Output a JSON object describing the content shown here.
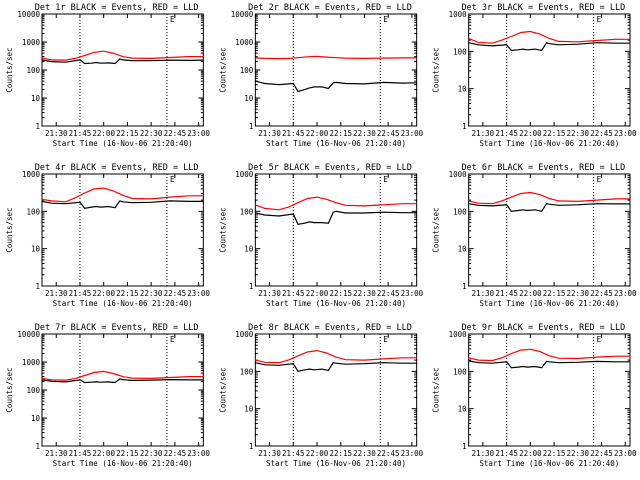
{
  "figure_title": "",
  "colors": {
    "events": "#000000",
    "lld": "#ff0000",
    "axis": "#000000",
    "background": "#ffffff"
  },
  "chart_data": [
    {
      "type": "line",
      "title": "Det 1r BLACK = Events, RED = LLD",
      "ylabel": "Counts/sec",
      "xlabel": "Start Time (16-Nov-06 21:20:40)",
      "yscale": "log",
      "ylim": [
        1,
        10000
      ],
      "xlim": [
        21.35,
        23.05
      ],
      "x_ticks": [
        "21:30",
        "21:45",
        "22:00",
        "22:15",
        "22:30",
        "22:45",
        "23:00"
      ],
      "y_ticks": [
        "1",
        "10",
        "100",
        "1000",
        "10000"
      ],
      "marker_lines": [
        "21:45",
        "22:40"
      ],
      "corner_label": "E",
      "series": [
        {
          "name": "Events",
          "color": "#000000",
          "x": [
            21.35,
            21.45,
            21.6,
            21.75,
            21.8,
            21.87,
            21.92,
            21.97,
            22.05,
            22.12,
            22.17,
            22.2,
            22.3,
            22.5,
            22.7,
            22.9,
            23.05
          ],
          "y": [
            230,
            200,
            190,
            230,
            170,
            175,
            185,
            175,
            180,
            170,
            250,
            230,
            215,
            215,
            225,
            220,
            225
          ]
        },
        {
          "name": "LLD",
          "color": "#ff0000",
          "x": [
            21.35,
            21.45,
            21.6,
            21.7,
            21.8,
            21.9,
            22.0,
            22.1,
            22.2,
            22.3,
            22.5,
            22.7,
            22.9,
            23.05
          ],
          "y": [
            270,
            230,
            225,
            260,
            330,
            430,
            470,
            400,
            300,
            265,
            260,
            280,
            300,
            300
          ]
        }
      ]
    },
    {
      "type": "line",
      "title": "Det 2r BLACK = Events, RED = LLD",
      "ylabel": "Counts/sec",
      "xlabel": "Start Time (16-Nov-06 21:20:40)",
      "yscale": "log",
      "ylim": [
        1,
        10000
      ],
      "xlim": [
        21.35,
        23.05
      ],
      "x_ticks": [
        "21:30",
        "21:45",
        "22:00",
        "22:15",
        "22:30",
        "22:45",
        "23:00"
      ],
      "y_ticks": [
        "1",
        "10",
        "100",
        "1000",
        "10000"
      ],
      "marker_lines": [
        "21:45",
        "22:40"
      ],
      "corner_label": "E",
      "series": [
        {
          "name": "Events",
          "color": "#000000",
          "x": [
            21.35,
            21.45,
            21.6,
            21.75,
            21.8,
            21.87,
            21.92,
            21.97,
            22.05,
            22.12,
            22.17,
            22.2,
            22.3,
            22.5,
            22.7,
            22.9,
            23.05
          ],
          "y": [
            40,
            33,
            30,
            33,
            17,
            20,
            23,
            25,
            25,
            22,
            35,
            36,
            33,
            32,
            36,
            34,
            35
          ]
        },
        {
          "name": "LLD",
          "color": "#ff0000",
          "x": [
            21.35,
            21.45,
            21.6,
            21.7,
            21.8,
            21.9,
            22.0,
            22.1,
            22.2,
            22.3,
            22.5,
            22.7,
            22.9,
            23.05
          ],
          "y": [
            270,
            260,
            255,
            260,
            275,
            295,
            305,
            290,
            275,
            265,
            260,
            265,
            270,
            270
          ]
        }
      ]
    },
    {
      "type": "line",
      "title": "Det 3r BLACK = Events, RED = LLD",
      "ylabel": "Counts/sec",
      "xlabel": "Start Time (16-Nov-06 21:20:40)",
      "yscale": "log",
      "ylim": [
        1,
        1000
      ],
      "xlim": [
        21.35,
        23.05
      ],
      "x_ticks": [
        "21:30",
        "21:45",
        "22:00",
        "22:15",
        "22:30",
        "22:45",
        "23:00"
      ],
      "y_ticks": [
        "1",
        "10",
        "100",
        "1000"
      ],
      "marker_lines": [
        "21:45",
        "22:40"
      ],
      "corner_label": "E",
      "series": [
        {
          "name": "Events",
          "color": "#000000",
          "x": [
            21.35,
            21.45,
            21.6,
            21.75,
            21.8,
            21.87,
            21.92,
            21.97,
            22.05,
            22.12,
            22.17,
            22.2,
            22.3,
            22.5,
            22.7,
            22.9,
            23.05
          ],
          "y": [
            170,
            150,
            140,
            150,
            105,
            110,
            115,
            110,
            115,
            105,
            170,
            160,
            150,
            155,
            170,
            165,
            165
          ]
        },
        {
          "name": "LLD",
          "color": "#ff0000",
          "x": [
            21.35,
            21.45,
            21.6,
            21.7,
            21.8,
            21.9,
            22.0,
            22.1,
            22.2,
            22.3,
            22.5,
            22.7,
            22.9,
            23.05
          ],
          "y": [
            220,
            175,
            165,
            200,
            250,
            320,
            340,
            290,
            220,
            185,
            180,
            195,
            210,
            210
          ]
        }
      ]
    },
    {
      "type": "line",
      "title": "Det 4r BLACK = Events, RED = LLD",
      "ylabel": "Counts/sec",
      "xlabel": "Start Time (16-Nov-06 21:20:40)",
      "yscale": "log",
      "ylim": [
        1,
        1000
      ],
      "xlim": [
        21.35,
        23.05
      ],
      "x_ticks": [
        "21:30",
        "21:45",
        "22:00",
        "22:15",
        "22:30",
        "22:45",
        "23:00"
      ],
      "y_ticks": [
        "1",
        "10",
        "100",
        "1000"
      ],
      "marker_lines": [
        "21:45",
        "22:40"
      ],
      "corner_label": "E",
      "series": [
        {
          "name": "Events",
          "color": "#000000",
          "x": [
            21.35,
            21.45,
            21.6,
            21.75,
            21.8,
            21.87,
            21.92,
            21.97,
            22.05,
            22.12,
            22.17,
            22.2,
            22.3,
            22.5,
            22.7,
            22.9,
            23.05
          ],
          "y": [
            185,
            165,
            160,
            175,
            120,
            130,
            135,
            130,
            135,
            125,
            190,
            180,
            170,
            175,
            190,
            185,
            185
          ]
        },
        {
          "name": "LLD",
          "color": "#ff0000",
          "x": [
            21.35,
            21.45,
            21.6,
            21.7,
            21.8,
            21.9,
            22.0,
            22.1,
            22.2,
            22.3,
            22.5,
            22.7,
            22.9,
            23.05
          ],
          "y": [
            210,
            190,
            180,
            230,
            310,
            400,
            420,
            350,
            270,
            220,
            215,
            240,
            260,
            260
          ]
        }
      ]
    },
    {
      "type": "line",
      "title": "Det 5r BLACK = Events, RED = LLD",
      "ylabel": "Counts/sec",
      "xlabel": "Start Time (16-Nov-06 21:20:40)",
      "yscale": "log",
      "ylim": [
        1,
        1000
      ],
      "xlim": [
        21.35,
        23.05
      ],
      "x_ticks": [
        "21:30",
        "21:45",
        "22:00",
        "22:15",
        "22:30",
        "22:45",
        "23:00"
      ],
      "y_ticks": [
        "1",
        "10",
        "100",
        "1000"
      ],
      "marker_lines": [
        "21:45",
        "22:40"
      ],
      "corner_label": "E",
      "series": [
        {
          "name": "Events",
          "color": "#000000",
          "x": [
            21.35,
            21.45,
            21.6,
            21.75,
            21.8,
            21.87,
            21.92,
            21.97,
            22.05,
            22.12,
            22.17,
            22.2,
            22.3,
            22.5,
            22.7,
            22.9,
            23.05
          ],
          "y": [
            90,
            80,
            75,
            85,
            45,
            48,
            52,
            50,
            50,
            48,
            95,
            100,
            90,
            90,
            95,
            92,
            92
          ]
        },
        {
          "name": "LLD",
          "color": "#ff0000",
          "x": [
            21.35,
            21.45,
            21.6,
            21.7,
            21.8,
            21.9,
            22.0,
            22.1,
            22.2,
            22.3,
            22.5,
            22.7,
            22.9,
            23.05
          ],
          "y": [
            150,
            120,
            110,
            130,
            170,
            220,
            240,
            210,
            170,
            145,
            140,
            150,
            160,
            160
          ]
        }
      ]
    },
    {
      "type": "line",
      "title": "Det 6r BLACK = Events, RED = LLD",
      "ylabel": "Counts/sec",
      "xlabel": "Start Time (16-Nov-06 21:20:40)",
      "yscale": "log",
      "ylim": [
        1,
        1000
      ],
      "xlim": [
        21.35,
        23.05
      ],
      "x_ticks": [
        "21:30",
        "21:45",
        "22:00",
        "22:15",
        "22:30",
        "22:45",
        "23:00"
      ],
      "y_ticks": [
        "1",
        "10",
        "100",
        "1000"
      ],
      "marker_lines": [
        "21:45",
        "22:40"
      ],
      "corner_label": "E",
      "series": [
        {
          "name": "Events",
          "color": "#000000",
          "x": [
            21.35,
            21.45,
            21.6,
            21.75,
            21.8,
            21.87,
            21.92,
            21.97,
            22.05,
            22.12,
            22.17,
            22.2,
            22.3,
            22.5,
            22.7,
            22.9,
            23.05
          ],
          "y": [
            160,
            145,
            140,
            150,
            100,
            105,
            110,
            105,
            110,
            100,
            160,
            155,
            145,
            150,
            160,
            158,
            158
          ]
        },
        {
          "name": "LLD",
          "color": "#ff0000",
          "x": [
            21.35,
            21.45,
            21.6,
            21.7,
            21.8,
            21.9,
            22.0,
            22.1,
            22.2,
            22.3,
            22.5,
            22.7,
            22.9,
            23.05
          ],
          "y": [
            190,
            165,
            160,
            190,
            240,
            300,
            320,
            280,
            220,
            190,
            185,
            200,
            215,
            215
          ]
        }
      ]
    },
    {
      "type": "line",
      "title": "Det 7r BLACK = Events, RED = LLD",
      "ylabel": "Counts/sec",
      "xlabel": "Start Time (16-Nov-06 21:20:40)",
      "yscale": "log",
      "ylim": [
        1,
        10000
      ],
      "xlim": [
        21.35,
        23.05
      ],
      "x_ticks": [
        "21:30",
        "21:45",
        "22:00",
        "22:15",
        "22:30",
        "22:45",
        "23:00"
      ],
      "y_ticks": [
        "1",
        "10",
        "100",
        "1000",
        "10000"
      ],
      "marker_lines": [
        "21:45",
        "22:40"
      ],
      "corner_label": "E",
      "series": [
        {
          "name": "Events",
          "color": "#000000",
          "x": [
            21.35,
            21.45,
            21.6,
            21.75,
            21.8,
            21.87,
            21.92,
            21.97,
            22.05,
            22.12,
            22.17,
            22.2,
            22.3,
            22.5,
            22.7,
            22.9,
            23.05
          ],
          "y": [
            230,
            205,
            195,
            230,
            185,
            190,
            195,
            190,
            195,
            185,
            250,
            235,
            220,
            225,
            235,
            230,
            230
          ]
        },
        {
          "name": "LLD",
          "color": "#ff0000",
          "x": [
            21.35,
            21.45,
            21.6,
            21.7,
            21.8,
            21.9,
            22.0,
            22.1,
            22.2,
            22.3,
            22.5,
            22.7,
            22.9,
            23.05
          ],
          "y": [
            260,
            230,
            225,
            255,
            330,
            420,
            460,
            390,
            300,
            265,
            260,
            280,
            300,
            300
          ]
        }
      ]
    },
    {
      "type": "line",
      "title": "Det 8r BLACK = Events, RED = LLD",
      "ylabel": "Counts/sec",
      "xlabel": "Start Time (16-Nov-06 21:20:40)",
      "yscale": "log",
      "ylim": [
        1,
        1000
      ],
      "xlim": [
        21.35,
        23.05
      ],
      "x_ticks": [
        "21:30",
        "21:45",
        "22:00",
        "22:15",
        "22:30",
        "22:45",
        "23:00"
      ],
      "y_ticks": [
        "1",
        "10",
        "100",
        "1000"
      ],
      "marker_lines": [
        "21:45",
        "22:40"
      ],
      "corner_label": "E",
      "series": [
        {
          "name": "Events",
          "color": "#000000",
          "x": [
            21.35,
            21.45,
            21.6,
            21.75,
            21.8,
            21.87,
            21.92,
            21.97,
            22.05,
            22.12,
            22.17,
            22.2,
            22.3,
            22.5,
            22.7,
            22.9,
            23.05
          ],
          "y": [
            170,
            150,
            145,
            160,
            100,
            110,
            115,
            110,
            115,
            105,
            170,
            165,
            155,
            160,
            170,
            165,
            165
          ]
        },
        {
          "name": "LLD",
          "color": "#ff0000",
          "x": [
            21.35,
            21.45,
            21.6,
            21.7,
            21.8,
            21.9,
            22.0,
            22.1,
            22.2,
            22.3,
            22.5,
            22.7,
            22.9,
            23.05
          ],
          "y": [
            200,
            175,
            170,
            200,
            260,
            330,
            360,
            310,
            240,
            205,
            200,
            215,
            230,
            230
          ]
        }
      ]
    },
    {
      "type": "line",
      "title": "Det 9r BLACK = Events, RED = LLD",
      "ylabel": "Counts/sec",
      "xlabel": "Start Time (16-Nov-06 21:20:40)",
      "yscale": "log",
      "ylim": [
        1,
        1000
      ],
      "xlim": [
        21.35,
        23.05
      ],
      "x_ticks": [
        "21:30",
        "21:45",
        "22:00",
        "22:15",
        "22:30",
        "22:45",
        "23:00"
      ],
      "y_ticks": [
        "1",
        "10",
        "100",
        "1000"
      ],
      "marker_lines": [
        "21:45",
        "22:40"
      ],
      "corner_label": "E",
      "series": [
        {
          "name": "Events",
          "color": "#000000",
          "x": [
            21.35,
            21.45,
            21.6,
            21.75,
            21.8,
            21.87,
            21.92,
            21.97,
            22.05,
            22.12,
            22.17,
            22.2,
            22.3,
            22.5,
            22.7,
            22.9,
            23.05
          ],
          "y": [
            190,
            170,
            165,
            180,
            125,
            130,
            135,
            130,
            135,
            125,
            185,
            180,
            170,
            175,
            185,
            180,
            180
          ]
        },
        {
          "name": "LLD",
          "color": "#ff0000",
          "x": [
            21.35,
            21.45,
            21.6,
            21.7,
            21.8,
            21.9,
            22.0,
            22.1,
            22.2,
            22.3,
            22.5,
            22.7,
            22.9,
            23.05
          ],
          "y": [
            230,
            200,
            195,
            230,
            300,
            370,
            390,
            340,
            260,
            225,
            220,
            240,
            255,
            255
          ]
        }
      ]
    }
  ]
}
